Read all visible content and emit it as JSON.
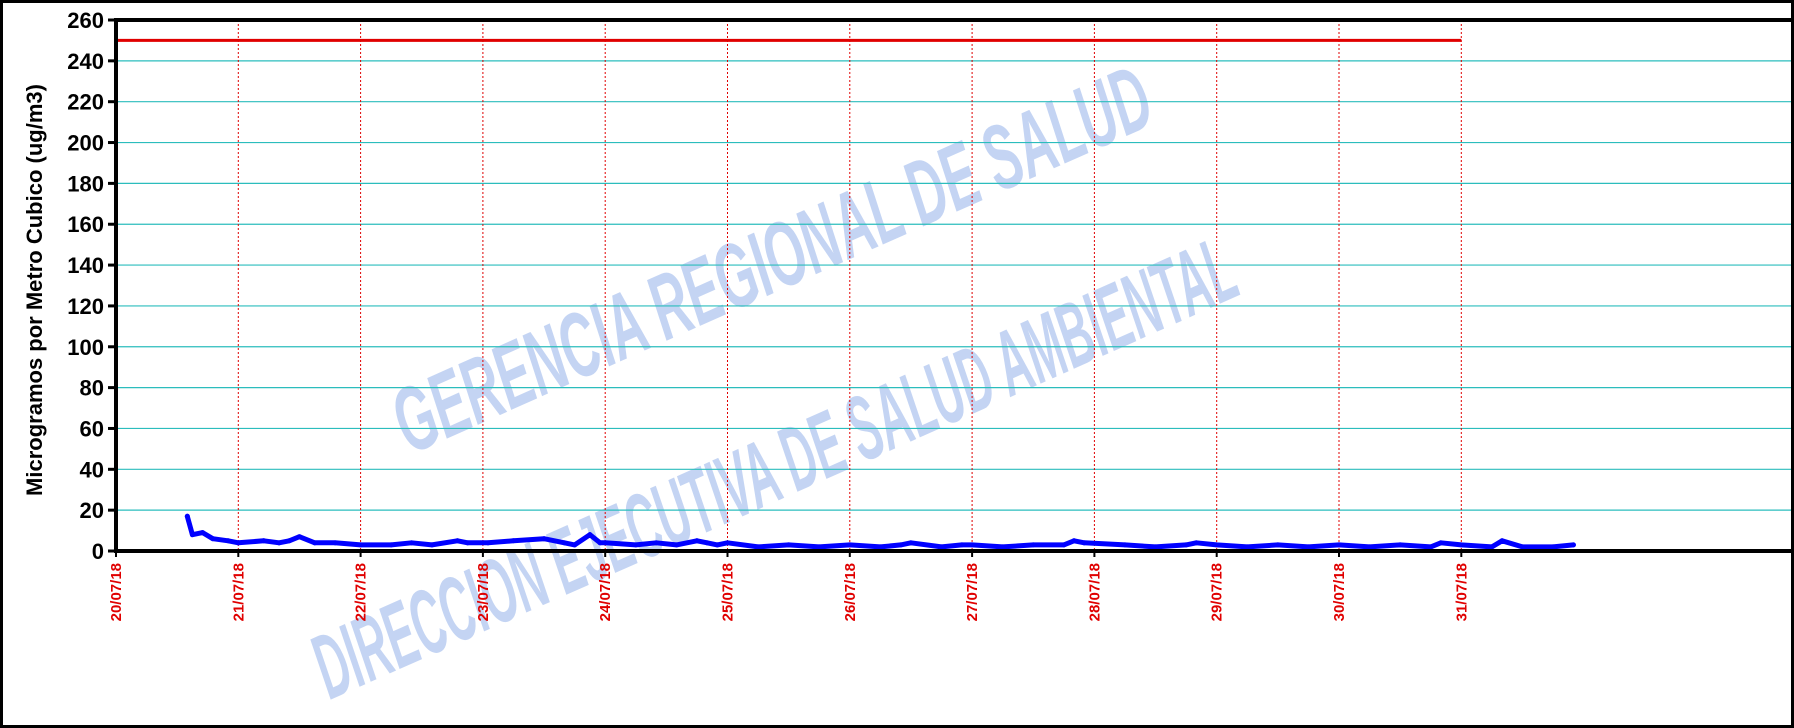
{
  "chart_data": {
    "type": "line",
    "ylabel": "Microgramos por Metro Cubico (ug/m3)",
    "xlabel": "",
    "ylim": [
      0,
      260
    ],
    "yticks": [
      0,
      20,
      40,
      60,
      80,
      100,
      120,
      140,
      160,
      180,
      200,
      220,
      240,
      260
    ],
    "x_range": [
      "20/07/18",
      "01/08/18"
    ],
    "x_tick_labels": [
      "20/07/18",
      "21/07/18",
      "22/07/18",
      "23/07/18",
      "24/07/18",
      "25/07/18",
      "26/07/18",
      "27/07/18",
      "28/07/18",
      "29/07/18",
      "30/07/18",
      "31/07/18"
    ],
    "grid": true,
    "colors": {
      "series": "#0000ff",
      "limit": "#e00000",
      "hgrid": "#2bbdbd",
      "vgrid": "#e00000",
      "tick_labels": "#e00000",
      "watermark": "#7da2e6"
    },
    "watermark": [
      "GERENCIA REGIONAL DE SALUD",
      "DIRECCION EJECUTIVA DE SALUD AMBIENTAL"
    ],
    "limit_line": {
      "value": 250,
      "from": "20/07/18",
      "to": "31/07/18"
    },
    "series": [
      {
        "x": [
          "20/07/18 14:00",
          "20/07/18 15:00",
          "20/07/18 17:00",
          "20/07/18 19:00",
          "20/07/18 22:00",
          "21/07/18 00:00",
          "21/07/18 05:00",
          "21/07/18 08:00",
          "21/07/18 10:00",
          "21/07/18 12:00",
          "21/07/18 15:00",
          "21/07/18 19:00",
          "22/07/18 00:00",
          "22/07/18 06:00",
          "22/07/18 10:00",
          "22/07/18 14:00",
          "22/07/18 19:00",
          "22/07/18 21:00",
          "23/07/18 01:00",
          "23/07/18 06:00",
          "23/07/18 12:00",
          "23/07/18 16:00",
          "23/07/18 18:00",
          "23/07/18 21:00",
          "23/07/18 23:00",
          "24/07/18 00:00",
          "24/07/18 06:00",
          "24/07/18 10:00",
          "24/07/18 14:00",
          "24/07/18 18:00",
          "24/07/18 20:00",
          "24/07/18 22:00",
          "25/07/18 00:00",
          "25/07/18 06:00",
          "25/07/18 12:00",
          "25/07/18 18:00",
          "26/07/18 00:00",
          "26/07/18 06:00",
          "26/07/18 10:00",
          "26/07/18 12:00",
          "26/07/18 18:00",
          "26/07/18 22:00",
          "27/07/18 00:00",
          "27/07/18 06:00",
          "27/07/18 12:00",
          "27/07/18 18:00",
          "27/07/18 20:00",
          "27/07/18 22:00",
          "28/07/18 06:00",
          "28/07/18 12:00",
          "28/07/18 18:00",
          "28/07/18 20:00",
          "29/07/18 00:00",
          "29/07/18 06:00",
          "29/07/18 12:00",
          "29/07/18 18:00",
          "30/07/18 00:00",
          "30/07/18 06:00",
          "30/07/18 12:00",
          "30/07/18 18:00",
          "30/07/18 20:00",
          "31/07/18 00:00",
          "31/07/18 06:00",
          "31/07/18 08:00",
          "31/07/18 12:00",
          "31/07/18 18:00",
          "31/07/18 22:00"
        ],
        "values": [
          17,
          8,
          9,
          6,
          5,
          4,
          5,
          4,
          5,
          7,
          4,
          4,
          3,
          3,
          4,
          3,
          5,
          4,
          4,
          5,
          6,
          4,
          3,
          8,
          4,
          4,
          3,
          4,
          3,
          5,
          4,
          3,
          4,
          2,
          3,
          2,
          3,
          2,
          3,
          4,
          2,
          3,
          3,
          2,
          3,
          3,
          5,
          4,
          3,
          2,
          3,
          4,
          3,
          2,
          3,
          2,
          3,
          2,
          3,
          2,
          4,
          3,
          2,
          5,
          2,
          2,
          3
        ]
      }
    ]
  }
}
